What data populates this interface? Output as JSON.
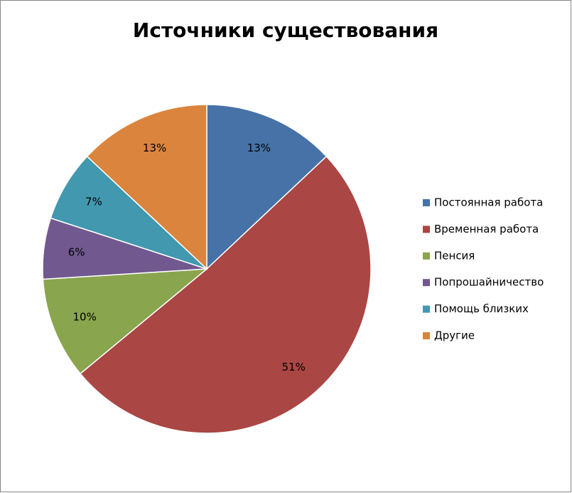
{
  "chart_data": {
    "type": "pie",
    "title": "Источники существования",
    "categories": [
      "Постоянная работа",
      "Временная работа",
      "Пенсия",
      "Попрошайничество",
      "Помощь близких",
      "Другие"
    ],
    "values": [
      13,
      51,
      10,
      6,
      7,
      13
    ],
    "value_labels": [
      "13%",
      "51%",
      "10%",
      "6%",
      "7%",
      "13%"
    ],
    "colors": [
      "#4672a8",
      "#aa4644",
      "#89a54e",
      "#71588f",
      "#4198af",
      "#db843d"
    ],
    "legend": "right"
  }
}
